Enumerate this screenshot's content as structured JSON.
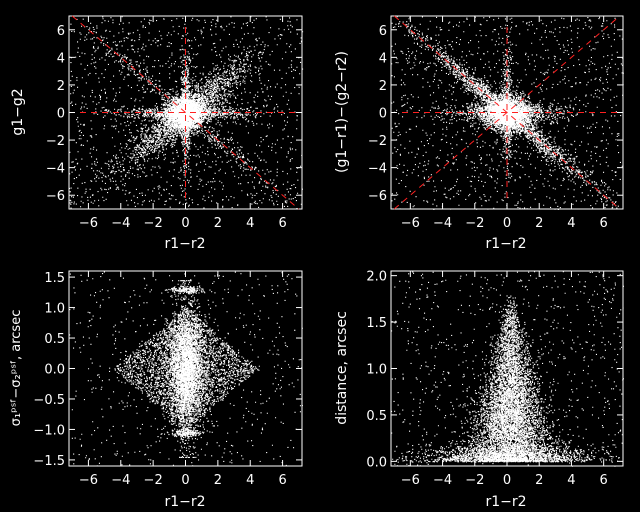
{
  "chart_data": [
    {
      "type": "scatter",
      "xlabel": "r1−r2",
      "ylabel": "g1−g2",
      "xlim": [
        -7.2,
        7.2
      ],
      "ylim": [
        -7,
        7
      ],
      "xticks": [
        -6,
        -4,
        -2,
        0,
        2,
        4,
        6
      ],
      "yticks": [
        -6,
        -4,
        -2,
        0,
        2,
        4,
        6
      ],
      "xtick_labels": [
        "−6",
        "−4",
        "−2",
        "0",
        "2",
        "4",
        "6"
      ],
      "ytick_labels": [
        "−6",
        "−4",
        "−2",
        "0",
        "2",
        "4",
        "6"
      ],
      "grid": false,
      "point_color": "#ffffff",
      "reference_lines": {
        "color": "#ff2020",
        "style": "dashed",
        "lines": [
          {
            "x": [
              -7.2,
              7.2
            ],
            "y": [
              0,
              0
            ]
          },
          {
            "x": [
              0,
              0
            ],
            "y": [
              -7,
              7
            ]
          },
          {
            "x": [
              -7,
              7
            ],
            "y": [
              7,
              -7
            ]
          }
        ]
      },
      "point_clusters": [
        {
          "n": 2400,
          "type": "gauss",
          "cx": 0,
          "cy": 0,
          "sx": 0.55,
          "sy": 0.55
        },
        {
          "n": 2000,
          "type": "diag",
          "slope": 1,
          "t_sigma": 1.9,
          "w_sigma": 0.55
        },
        {
          "n": 450,
          "type": "diag",
          "slope": -1,
          "t_sigma": 3.0,
          "w_sigma": 0.3
        },
        {
          "n": 800,
          "type": "hline",
          "y": 0,
          "t_sigma": 2.0,
          "w_sigma": 0.2
        },
        {
          "n": 600,
          "type": "vline",
          "x": 0,
          "t_sigma": 2.2,
          "w_sigma": 0.15
        },
        {
          "n": 1300,
          "type": "uniform"
        }
      ]
    },
    {
      "type": "scatter",
      "xlabel": "r1−r2",
      "ylabel": "(g1−r1)−(g2−r2)",
      "xlim": [
        -7.2,
        7.2
      ],
      "ylim": [
        -7,
        7
      ],
      "xticks": [
        -6,
        -4,
        -2,
        0,
        2,
        4,
        6
      ],
      "yticks": [
        -6,
        -4,
        -2,
        0,
        2,
        4,
        6
      ],
      "xtick_labels": [
        "−6",
        "−4",
        "−2",
        "0",
        "2",
        "4",
        "6"
      ],
      "ytick_labels": [
        "−6",
        "−4",
        "−2",
        "0",
        "2",
        "4",
        "6"
      ],
      "grid": false,
      "point_color": "#ffffff",
      "reference_lines": {
        "color": "#ff2020",
        "style": "dashed",
        "lines": [
          {
            "x": [
              -7.2,
              7.2
            ],
            "y": [
              0,
              0
            ]
          },
          {
            "x": [
              0,
              0
            ],
            "y": [
              -7,
              7
            ]
          },
          {
            "x": [
              -7,
              7
            ],
            "y": [
              -7,
              7
            ]
          },
          {
            "x": [
              -7,
              7
            ],
            "y": [
              7,
              -7
            ]
          }
        ]
      },
      "point_clusters": [
        {
          "n": 2600,
          "type": "gauss",
          "cx": 0,
          "cy": 0,
          "sx": 0.7,
          "sy": 0.6
        },
        {
          "n": 1800,
          "type": "diag",
          "slope": -1,
          "t_sigma": 2.6,
          "w_sigma": 0.3
        },
        {
          "n": 900,
          "type": "hline",
          "y": 0,
          "t_sigma": 1.8,
          "w_sigma": 0.35
        },
        {
          "n": 500,
          "type": "vline",
          "x": 0,
          "t_sigma": 2.2,
          "w_sigma": 0.15
        },
        {
          "n": 1200,
          "type": "uniform"
        }
      ]
    },
    {
      "type": "scatter",
      "xlabel": "r1−r2",
      "ylabel": "σ₁ᵖˢᶠ−σ₂ᵖˢᶠ, arcsec",
      "xlim": [
        -7.2,
        7.2
      ],
      "ylim": [
        -1.6,
        1.6
      ],
      "xticks": [
        -6,
        -4,
        -2,
        0,
        2,
        4,
        6
      ],
      "yticks": [
        -1.5,
        -1.0,
        -0.5,
        0.0,
        0.5,
        1.0,
        1.5
      ],
      "xtick_labels": [
        "−6",
        "−4",
        "−2",
        "0",
        "2",
        "4",
        "6"
      ],
      "ytick_labels": [
        "−1.5",
        "−1.0",
        "−0.5",
        "0.0",
        "0.5",
        "1.0",
        "1.5"
      ],
      "grid": false,
      "point_color": "#ffffff",
      "point_clusters": [
        {
          "n": 5000,
          "type": "diamond",
          "cx": 0,
          "cy": 0,
          "ax": 4.5,
          "ay": 1.0
        },
        {
          "n": 3500,
          "type": "gauss",
          "cx": 0,
          "cy": 0,
          "sx": 0.55,
          "sy": 0.45
        },
        {
          "n": 500,
          "type": "vline",
          "x": 0,
          "t_sigma": 0.8,
          "w_sigma": 0.3,
          "tmax": 1.45
        },
        {
          "n": 200,
          "type": "hline",
          "y": 1.3,
          "t_sigma": 0.5,
          "w_sigma": 0.03
        },
        {
          "n": 200,
          "type": "hline",
          "y": -1.05,
          "t_sigma": 0.5,
          "w_sigma": 0.03
        },
        {
          "n": 600,
          "type": "uniform"
        }
      ]
    },
    {
      "type": "scatter",
      "xlabel": "r1−r2",
      "ylabel": "distance, arcsec",
      "xlim": [
        -7.2,
        7.2
      ],
      "ylim": [
        -0.05,
        2.05
      ],
      "xticks": [
        -6,
        -4,
        -2,
        0,
        2,
        4,
        6
      ],
      "yticks": [
        0.0,
        0.5,
        1.0,
        1.5,
        2.0
      ],
      "xtick_labels": [
        "−6",
        "−4",
        "−2",
        "0",
        "2",
        "4",
        "6"
      ],
      "ytick_labels": [
        "0.0",
        "0.5",
        "1.0",
        "1.5",
        "2.0"
      ],
      "grid": false,
      "point_color": "#ffffff",
      "point_clusters": [
        {
          "n": 6000,
          "type": "cone",
          "cx": 0.2,
          "top": 1.8,
          "spread": 1.3
        },
        {
          "n": 1500,
          "type": "floor",
          "y": 0.0,
          "xsigma": 2.8,
          "ysigma": 0.08
        },
        {
          "n": 800,
          "type": "uniform"
        }
      ]
    }
  ]
}
